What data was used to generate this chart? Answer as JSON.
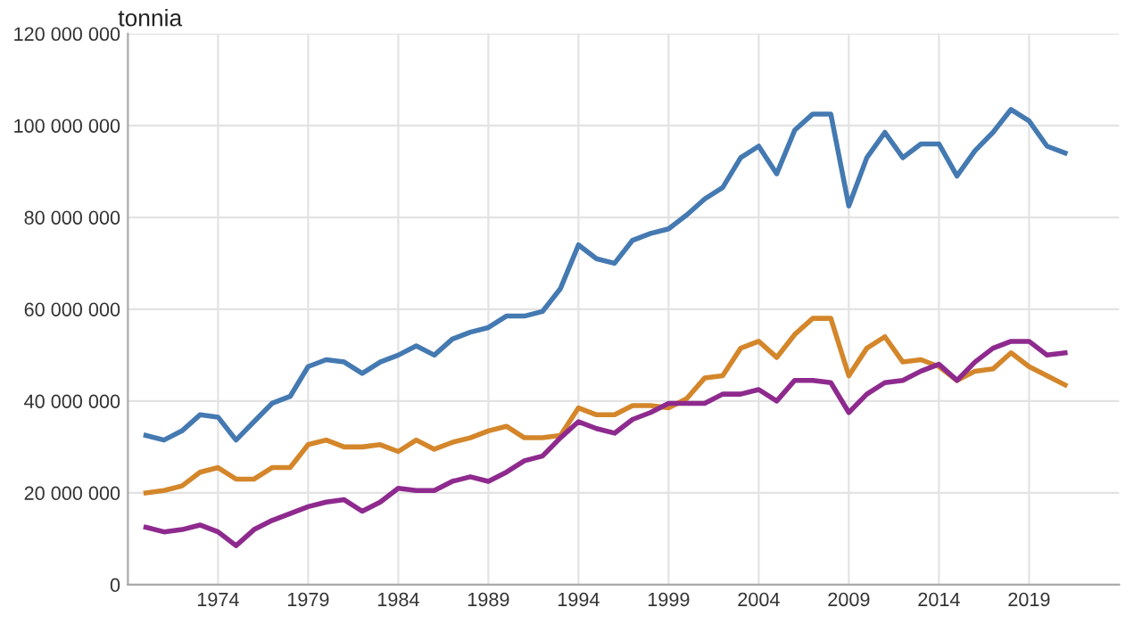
{
  "chart_data": {
    "type": "line",
    "ylabel": "tonnia",
    "x": [
      1970,
      1971,
      1972,
      1973,
      1974,
      1975,
      1976,
      1977,
      1978,
      1979,
      1980,
      1981,
      1982,
      1983,
      1984,
      1985,
      1986,
      1987,
      1988,
      1989,
      1990,
      1991,
      1992,
      1993,
      1994,
      1995,
      1996,
      1997,
      1998,
      1999,
      2000,
      2001,
      2002,
      2003,
      2004,
      2005,
      2006,
      2007,
      2008,
      2009,
      2010,
      2011,
      2012,
      2013,
      2014,
      2015,
      2016,
      2017,
      2018,
      2019,
      2020,
      2021
    ],
    "series": [
      {
        "color": "#4479b1",
        "values": [
          32500000,
          31500000,
          33500000,
          37000000,
          36500000,
          31500000,
          35500000,
          39500000,
          41000000,
          47500000,
          49000000,
          48500000,
          46000000,
          48500000,
          50000000,
          52000000,
          50000000,
          53500000,
          55000000,
          56000000,
          58500000,
          58500000,
          59500000,
          64500000,
          74000000,
          71000000,
          70000000,
          75000000,
          76500000,
          77500000,
          80500000,
          84000000,
          86500000,
          93000000,
          95500000,
          89500000,
          99000000,
          102500000,
          102500000,
          82500000,
          93000000,
          98500000,
          93000000,
          96000000,
          96000000,
          89000000,
          94500000,
          98500000,
          103500000,
          101000000,
          95500000,
          94000000
        ]
      },
      {
        "color": "#d4862a",
        "values": [
          20000000,
          20500000,
          21500000,
          24500000,
          25500000,
          23000000,
          23000000,
          25500000,
          25500000,
          30500000,
          31500000,
          30000000,
          30000000,
          30500000,
          29000000,
          31500000,
          29500000,
          31000000,
          32000000,
          33500000,
          34500000,
          32000000,
          32000000,
          32500000,
          38500000,
          37000000,
          37000000,
          39000000,
          39000000,
          38500000,
          40500000,
          45000000,
          45500000,
          51500000,
          53000000,
          49500000,
          54500000,
          58000000,
          58000000,
          45500000,
          51500000,
          54000000,
          48500000,
          49000000,
          47500000,
          44500000,
          46500000,
          47000000,
          50500000,
          47500000,
          45500000,
          43500000
        ]
      },
      {
        "color": "#8e2a8e",
        "values": [
          12500000,
          11500000,
          12000000,
          13000000,
          11500000,
          8500000,
          12000000,
          14000000,
          15500000,
          17000000,
          18000000,
          18500000,
          16000000,
          18000000,
          21000000,
          20500000,
          20500000,
          22500000,
          23500000,
          22500000,
          24500000,
          27000000,
          28000000,
          32000000,
          35500000,
          34000000,
          33000000,
          36000000,
          37500000,
          39500000,
          39500000,
          39500000,
          41500000,
          41500000,
          42500000,
          40000000,
          44500000,
          44500000,
          44000000,
          37500000,
          41500000,
          44000000,
          44500000,
          46500000,
          48000000,
          44500000,
          48500000,
          51500000,
          53000000,
          53000000,
          50000000,
          50500000
        ]
      }
    ],
    "xlim": [
      1969,
      2024
    ],
    "xticks": [
      1974,
      1979,
      1984,
      1989,
      1994,
      1999,
      2004,
      2009,
      2014,
      2019
    ],
    "ylim": [
      0,
      120000000
    ],
    "yticks": [
      0,
      {
        "value": 20000000,
        "label": "20 000 000"
      },
      {
        "value": 40000000,
        "label": "40 000 000"
      },
      {
        "value": 60000000,
        "label": "60 000 000"
      },
      {
        "value": 80000000,
        "label": "80 000 000"
      },
      {
        "value": 100000000,
        "label": "100 000 000"
      },
      {
        "value": 120000000,
        "label": "120 000 000"
      }
    ],
    "grid": true,
    "marker": "none",
    "line_style": "solid"
  }
}
